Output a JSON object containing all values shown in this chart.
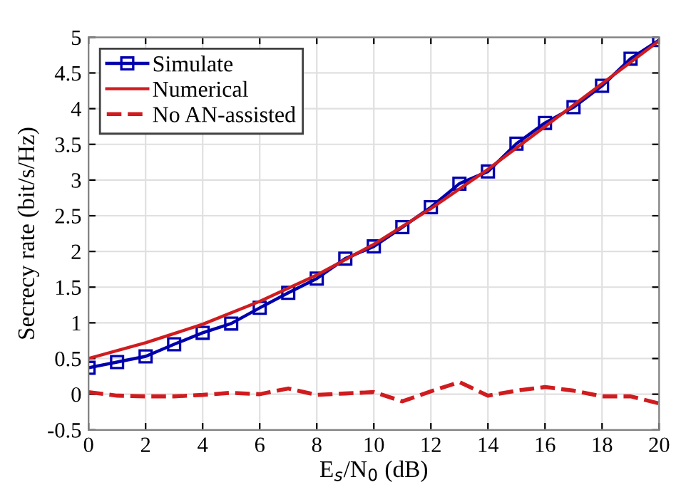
{
  "chart_data": {
    "type": "line",
    "xlabel": "E$_{s}$/N$_{0}$ (dB)",
    "ylabel": "Secrecy rate (bit/s/Hz)",
    "xlim": [
      0,
      20
    ],
    "xticks": [
      0,
      2,
      4,
      6,
      8,
      10,
      12,
      14,
      16,
      18,
      20
    ],
    "ylim": [
      -0.5,
      5
    ],
    "yticks": [
      -0.5,
      0,
      0.5,
      1,
      1.5,
      2,
      2.5,
      3,
      3.5,
      4,
      4.5,
      5
    ],
    "grid": true,
    "legend": "top left",
    "series": [
      {
        "name": "Simulate",
        "color": "#0000ae",
        "marker": "square",
        "line_style": "solid",
        "x": [
          0,
          1,
          2,
          3,
          4,
          5,
          6,
          7,
          8,
          9,
          10,
          11,
          12,
          13,
          14,
          15,
          16,
          17,
          18,
          19,
          20
        ],
        "values": [
          0.37,
          0.45,
          0.53,
          0.7,
          0.86,
          0.99,
          1.21,
          1.42,
          1.62,
          1.9,
          2.07,
          2.34,
          2.62,
          2.95,
          3.12,
          3.51,
          3.8,
          4.02,
          4.32,
          4.7,
          4.96
        ]
      },
      {
        "name": "Numerical",
        "color": "#d01c1f",
        "marker": "none",
        "line_style": "solid",
        "x": [
          0,
          2,
          4,
          6,
          8,
          10,
          12,
          14,
          16,
          18,
          20
        ],
        "values": [
          0.5,
          0.72,
          0.98,
          1.3,
          1.67,
          2.1,
          2.6,
          3.15,
          3.75,
          4.35,
          4.95
        ]
      },
      {
        "name": "No AN-assisted",
        "color": "#d01c1f",
        "marker": "none",
        "line_style": "dashed",
        "x": [
          0,
          1,
          2,
          3,
          4,
          5,
          6,
          7,
          8,
          9,
          10,
          11,
          12,
          13,
          14,
          15,
          16,
          17,
          18,
          19,
          20
        ],
        "values": [
          0.03,
          -0.02,
          -0.03,
          -0.03,
          -0.01,
          0.02,
          0.0,
          0.08,
          -0.01,
          0.01,
          0.03,
          -0.1,
          0.04,
          0.17,
          -0.02,
          0.05,
          0.1,
          0.05,
          -0.03,
          -0.03,
          -0.13
        ]
      }
    ]
  }
}
